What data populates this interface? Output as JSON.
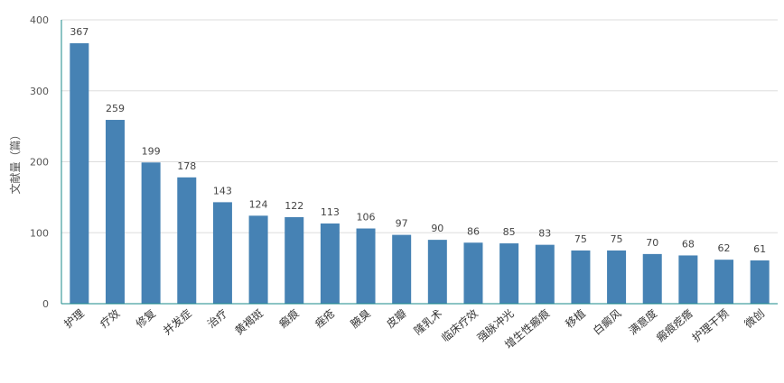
{
  "chart_data": {
    "type": "bar",
    "title": "",
    "xlabel": "",
    "ylabel": "文献量（篇）",
    "ylim": [
      0,
      400
    ],
    "yticks": [
      0,
      100,
      200,
      300,
      400
    ],
    "grid": true,
    "bar_color": "#4682b4",
    "axis_color": "#1a8a8a",
    "categories": [
      "护理",
      "疗效",
      "修复",
      "并发症",
      "治疗",
      "黄褐斑",
      "瘢痕",
      "痤疮",
      "腋臭",
      "皮瓣",
      "隆乳术",
      "临床疗效",
      "强脉冲光",
      "增生性瘢痕",
      "移植",
      "白癜风",
      "满意度",
      "瘢痕疙瘩",
      "护理干预",
      "微创"
    ],
    "values": [
      367,
      259,
      199,
      178,
      143,
      124,
      122,
      113,
      106,
      97,
      90,
      86,
      85,
      83,
      75,
      75,
      70,
      68,
      62,
      61
    ]
  }
}
